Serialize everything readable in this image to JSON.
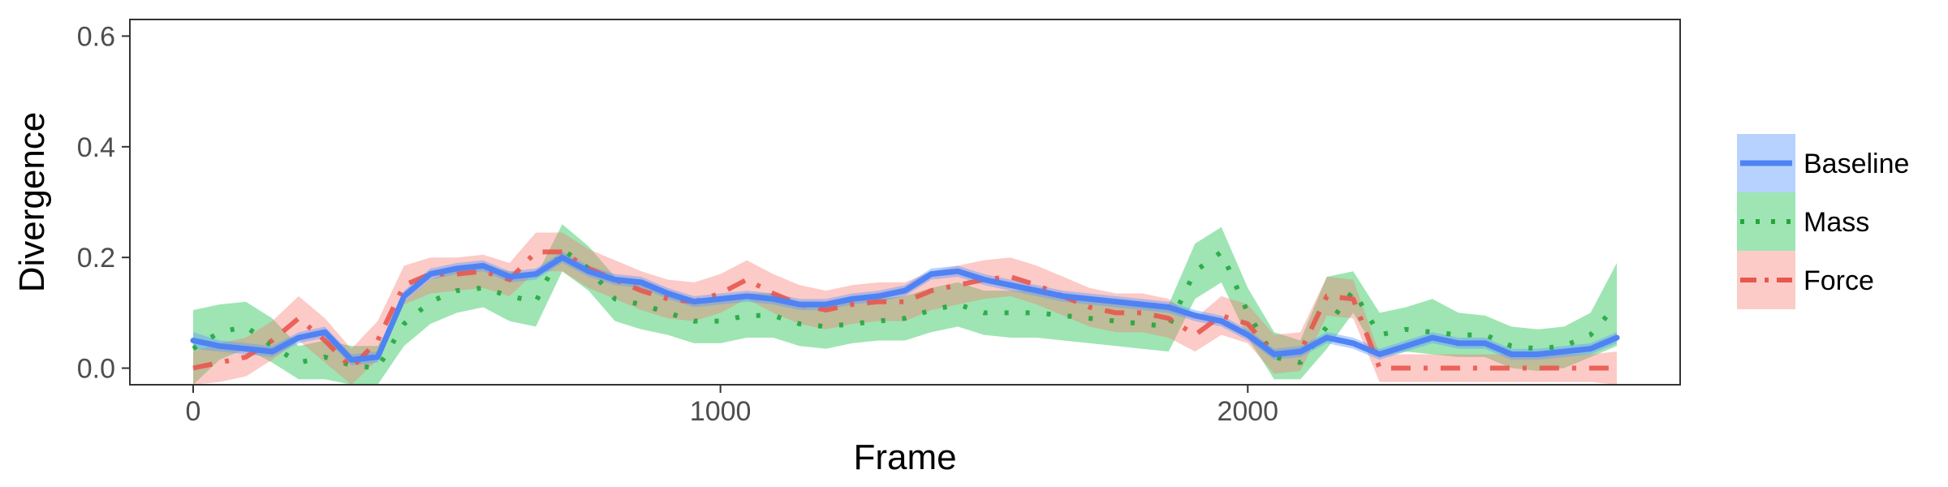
{
  "chart_data": {
    "type": "line",
    "title": "",
    "xlabel": "Frame",
    "ylabel": "Divergence",
    "xlim": [
      -120,
      2820
    ],
    "ylim": [
      -0.03,
      0.63
    ],
    "x_ticks": [
      0,
      1000,
      2000
    ],
    "x_tick_labels": [
      "0",
      "1000",
      "2000"
    ],
    "y_ticks": [
      0.0,
      0.2,
      0.4,
      0.6
    ],
    "y_tick_labels": [
      "0.0",
      "0.2",
      "0.4",
      "0.6"
    ],
    "grid": false,
    "legend_position": "right",
    "x": [
      0,
      50,
      100,
      150,
      200,
      250,
      300,
      350,
      400,
      450,
      500,
      550,
      600,
      650,
      700,
      750,
      800,
      850,
      900,
      950,
      1000,
      1050,
      1100,
      1150,
      1200,
      1250,
      1300,
      1350,
      1400,
      1450,
      1500,
      1550,
      1600,
      1650,
      1700,
      1750,
      1800,
      1850,
      1900,
      1950,
      2000,
      2050,
      2100,
      2150,
      2200,
      2250,
      2300,
      2350,
      2400,
      2450,
      2500,
      2550,
      2600,
      2650,
      2700
    ],
    "series": [
      {
        "name": "Baseline",
        "color": "#619CFF",
        "line_color": "#4F83F4",
        "dash": "solid",
        "values": [
          0.05,
          0.04,
          0.035,
          0.03,
          0.055,
          0.065,
          0.015,
          0.02,
          0.13,
          0.17,
          0.18,
          0.185,
          0.165,
          0.17,
          0.2,
          0.175,
          0.16,
          0.155,
          0.135,
          0.12,
          0.125,
          0.13,
          0.125,
          0.115,
          0.115,
          0.125,
          0.13,
          0.14,
          0.17,
          0.175,
          0.16,
          0.15,
          0.14,
          0.13,
          0.125,
          0.12,
          0.115,
          0.11,
          0.095,
          0.085,
          0.06,
          0.025,
          0.03,
          0.055,
          0.045,
          0.025,
          0.04,
          0.055,
          0.045,
          0.045,
          0.025,
          0.025,
          0.03,
          0.035,
          0.055
        ],
        "lower": [
          0.035,
          0.03,
          0.025,
          0.02,
          0.045,
          0.055,
          0.005,
          0.01,
          0.12,
          0.16,
          0.17,
          0.175,
          0.155,
          0.16,
          0.19,
          0.165,
          0.15,
          0.145,
          0.125,
          0.11,
          0.115,
          0.12,
          0.115,
          0.105,
          0.105,
          0.115,
          0.12,
          0.13,
          0.16,
          0.165,
          0.15,
          0.14,
          0.13,
          0.12,
          0.115,
          0.11,
          0.105,
          0.1,
          0.085,
          0.075,
          0.05,
          0.015,
          0.02,
          0.045,
          0.035,
          0.015,
          0.03,
          0.045,
          0.035,
          0.035,
          0.015,
          0.015,
          0.02,
          0.025,
          0.045
        ],
        "upper": [
          0.065,
          0.05,
          0.045,
          0.04,
          0.065,
          0.075,
          0.025,
          0.03,
          0.14,
          0.18,
          0.19,
          0.195,
          0.175,
          0.18,
          0.21,
          0.185,
          0.17,
          0.165,
          0.145,
          0.13,
          0.135,
          0.14,
          0.135,
          0.125,
          0.125,
          0.135,
          0.14,
          0.15,
          0.18,
          0.185,
          0.17,
          0.16,
          0.15,
          0.14,
          0.135,
          0.13,
          0.125,
          0.12,
          0.105,
          0.095,
          0.07,
          0.035,
          0.04,
          0.065,
          0.055,
          0.035,
          0.05,
          0.065,
          0.055,
          0.055,
          0.035,
          0.035,
          0.04,
          0.045,
          0.065
        ]
      },
      {
        "name": "Mass",
        "color": "#00BA38",
        "line_color": "#22A63D",
        "dash": "dotted",
        "values": [
          0.035,
          0.065,
          0.075,
          0.04,
          0.01,
          0.02,
          0.005,
          0.0,
          0.08,
          0.12,
          0.14,
          0.145,
          0.13,
          0.12,
          0.215,
          0.18,
          0.125,
          0.115,
          0.1,
          0.085,
          0.085,
          0.095,
          0.095,
          0.08,
          0.075,
          0.08,
          0.085,
          0.09,
          0.105,
          0.115,
          0.1,
          0.1,
          0.1,
          0.095,
          0.09,
          0.085,
          0.08,
          0.075,
          0.175,
          0.21,
          0.1,
          0.02,
          0.01,
          0.075,
          0.14,
          0.06,
          0.07,
          0.065,
          0.06,
          0.06,
          0.04,
          0.035,
          0.04,
          0.06,
          0.115
        ],
        "lower": [
          -0.03,
          0.015,
          0.035,
          0.01,
          -0.02,
          -0.02,
          -0.03,
          -0.03,
          0.04,
          0.08,
          0.1,
          0.11,
          0.085,
          0.075,
          0.175,
          0.14,
          0.085,
          0.07,
          0.06,
          0.045,
          0.045,
          0.055,
          0.055,
          0.04,
          0.035,
          0.045,
          0.05,
          0.05,
          0.065,
          0.075,
          0.06,
          0.055,
          0.055,
          0.05,
          0.045,
          0.04,
          0.035,
          0.03,
          0.125,
          0.155,
          0.055,
          -0.02,
          -0.02,
          0.035,
          0.1,
          0.02,
          0.03,
          0.025,
          0.02,
          0.02,
          0.0,
          -0.005,
          0.0,
          0.02,
          0.04
        ],
        "upper": [
          0.105,
          0.115,
          0.12,
          0.09,
          0.04,
          0.05,
          0.04,
          0.04,
          0.12,
          0.16,
          0.18,
          0.185,
          0.175,
          0.165,
          0.26,
          0.22,
          0.165,
          0.155,
          0.14,
          0.125,
          0.125,
          0.135,
          0.135,
          0.12,
          0.115,
          0.12,
          0.125,
          0.13,
          0.145,
          0.155,
          0.14,
          0.14,
          0.14,
          0.135,
          0.13,
          0.125,
          0.12,
          0.115,
          0.225,
          0.255,
          0.145,
          0.065,
          0.05,
          0.165,
          0.175,
          0.1,
          0.11,
          0.125,
          0.1,
          0.095,
          0.075,
          0.07,
          0.075,
          0.1,
          0.19
        ]
      },
      {
        "name": "Force",
        "color": "#F8766D",
        "line_color": "#E8574E",
        "dash": "dashdot",
        "values": [
          0.0,
          0.01,
          0.02,
          0.05,
          0.09,
          0.05,
          0.0,
          0.05,
          0.15,
          0.17,
          0.17,
          0.175,
          0.16,
          0.21,
          0.21,
          0.18,
          0.16,
          0.14,
          0.125,
          0.12,
          0.135,
          0.16,
          0.135,
          0.115,
          0.105,
          0.115,
          0.12,
          0.12,
          0.14,
          0.15,
          0.16,
          0.165,
          0.15,
          0.13,
          0.11,
          0.1,
          0.1,
          0.09,
          0.06,
          0.095,
          0.08,
          0.025,
          0.03,
          0.13,
          0.125,
          0.0,
          0.0,
          0.0,
          0.0,
          0.0,
          0.0,
          0.0,
          0.0,
          0.0,
          0.0
        ],
        "lower": [
          -0.03,
          -0.025,
          -0.015,
          0.015,
          0.05,
          0.01,
          -0.03,
          0.015,
          0.115,
          0.135,
          0.14,
          0.145,
          0.13,
          0.175,
          0.175,
          0.145,
          0.125,
          0.105,
          0.09,
          0.085,
          0.1,
          0.125,
          0.1,
          0.08,
          0.07,
          0.08,
          0.085,
          0.085,
          0.105,
          0.115,
          0.125,
          0.13,
          0.115,
          0.095,
          0.075,
          0.065,
          0.065,
          0.055,
          0.03,
          0.06,
          0.045,
          -0.01,
          -0.005,
          0.095,
          0.09,
          -0.025,
          -0.025,
          -0.025,
          -0.025,
          -0.025,
          -0.025,
          -0.025,
          -0.025,
          -0.025,
          -0.03
        ],
        "upper": [
          0.03,
          0.045,
          0.055,
          0.085,
          0.13,
          0.09,
          0.035,
          0.085,
          0.185,
          0.2,
          0.2,
          0.205,
          0.19,
          0.245,
          0.245,
          0.215,
          0.195,
          0.175,
          0.16,
          0.155,
          0.17,
          0.195,
          0.17,
          0.15,
          0.14,
          0.15,
          0.155,
          0.155,
          0.175,
          0.185,
          0.195,
          0.2,
          0.185,
          0.165,
          0.145,
          0.135,
          0.135,
          0.125,
          0.09,
          0.13,
          0.115,
          0.06,
          0.065,
          0.165,
          0.16,
          0.025,
          0.025,
          0.025,
          0.025,
          0.025,
          0.025,
          0.025,
          0.025,
          0.025,
          0.03
        ]
      }
    ]
  }
}
